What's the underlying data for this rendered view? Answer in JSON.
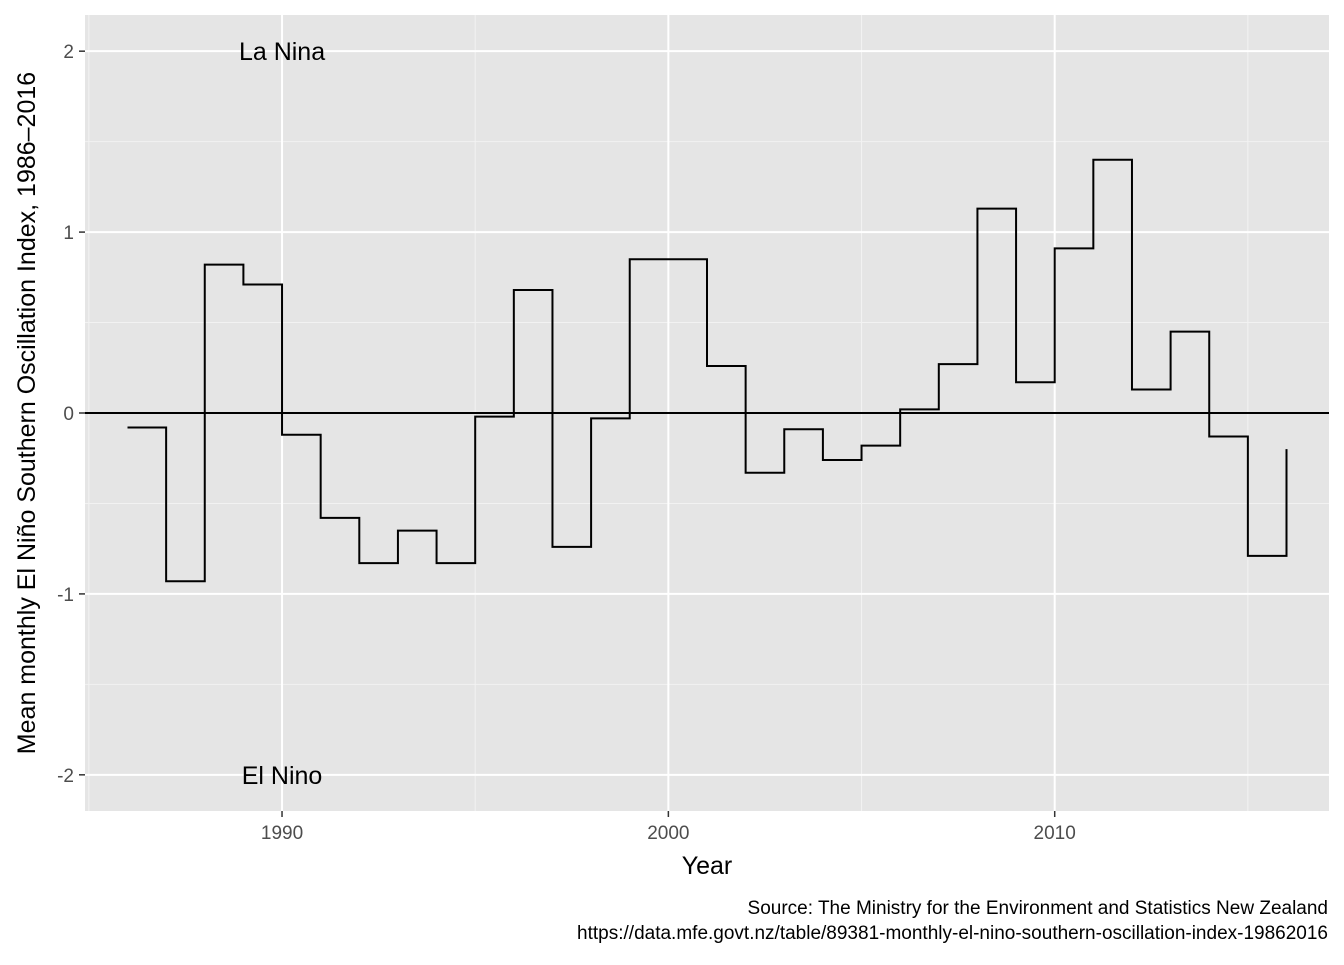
{
  "chart_data": {
    "type": "line",
    "step": "post",
    "xlabel": "Year",
    "ylabel": "Mean monthly El Niño Southern Oscillation Index, 1986–2016",
    "xlim": [
      1984.9,
      2017.1
    ],
    "ylim": [
      -2.2,
      2.2
    ],
    "x_ticks": [
      1990,
      2000,
      2010
    ],
    "y_ticks": [
      -2,
      -1,
      0,
      1,
      2
    ],
    "grid": true,
    "reference_line": {
      "y": 0
    },
    "annotations": [
      {
        "text": "La Nina",
        "x": 1990,
        "y": 2
      },
      {
        "text": "El Nino",
        "x": 1990,
        "y": -2
      }
    ],
    "series": [
      {
        "x": [
          1986,
          1987,
          1988,
          1989,
          1990,
          1991,
          1992,
          1993,
          1994,
          1995,
          1996,
          1997,
          1998,
          1999,
          2000,
          2001,
          2002,
          2003,
          2004,
          2005,
          2006,
          2007,
          2008,
          2009,
          2010,
          2011,
          2012,
          2013,
          2014,
          2015,
          2016
        ],
        "values": [
          -0.08,
          -0.93,
          0.82,
          0.71,
          -0.12,
          -0.58,
          -0.83,
          -0.65,
          -0.83,
          -0.02,
          0.68,
          -0.74,
          -0.03,
          0.85,
          0.85,
          0.26,
          -0.33,
          -0.09,
          -0.26,
          -0.18,
          0.02,
          0.27,
          1.13,
          0.17,
          0.91,
          1.4,
          0.13,
          0.45,
          -0.13,
          -0.79,
          -0.2
        ]
      }
    ],
    "caption_lines": [
      "Source: The Ministry for the Environment and Statistics New Zealand",
      "https://data.mfe.govt.nz/table/89381-monthly-el-nino-southern-oscillation-index-19862016"
    ]
  },
  "colors": {
    "panel_background": "#e5e5e5",
    "grid_major": "#ffffff",
    "grid_minor": "#f2f2f2",
    "line": "#000000",
    "tick_text": "#4d4d4d"
  }
}
